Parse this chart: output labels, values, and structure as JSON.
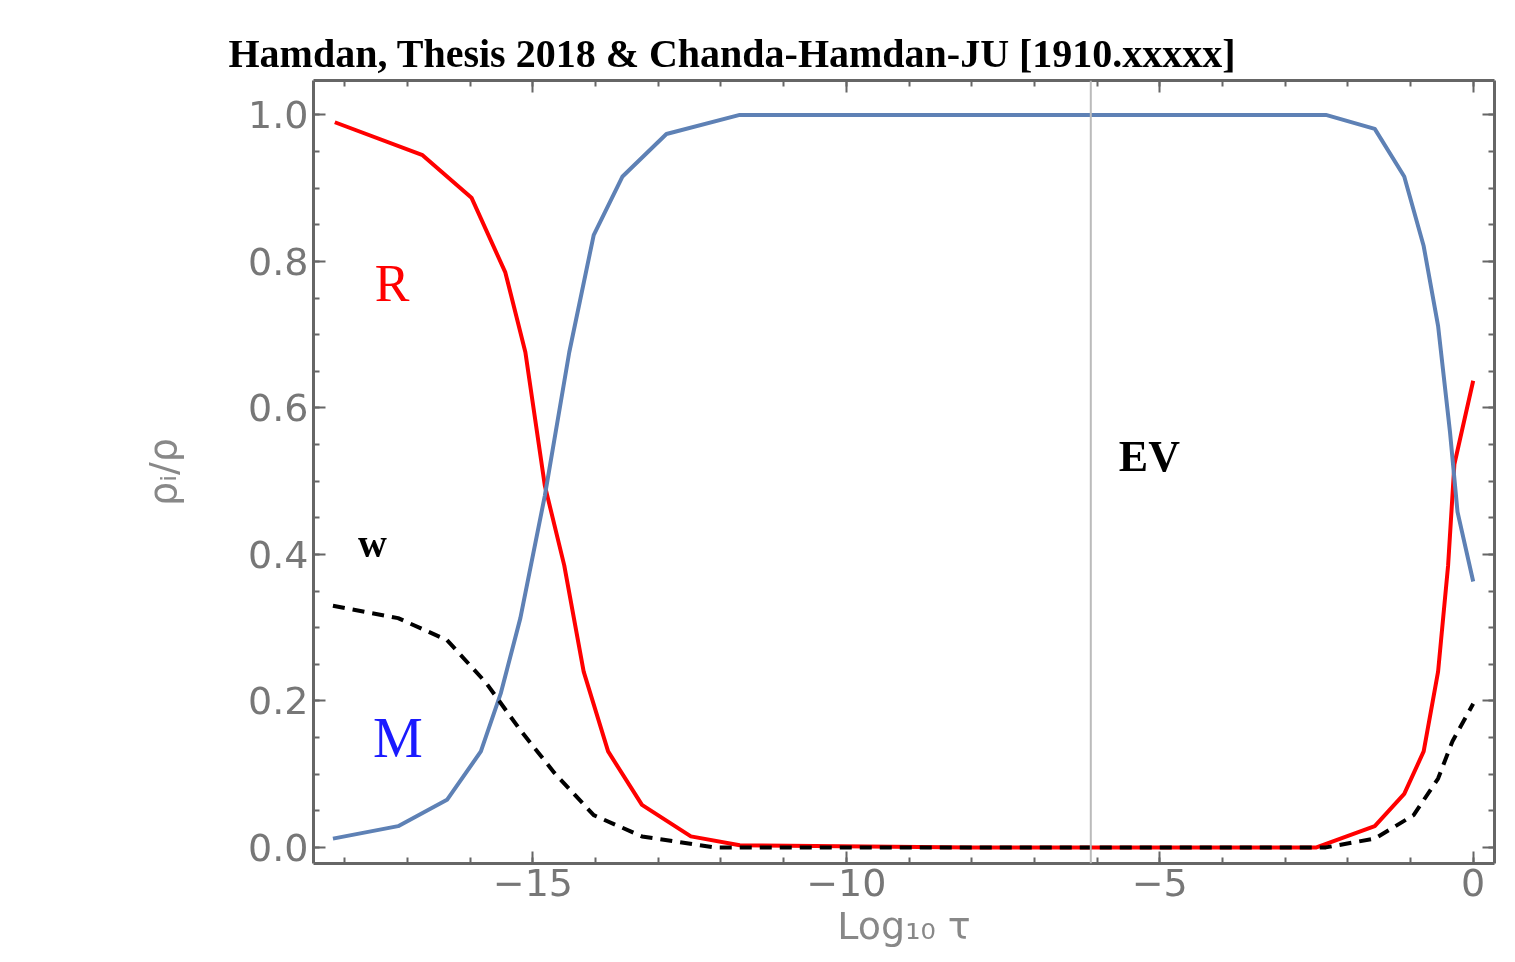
{
  "chart_data": {
    "type": "line",
    "title": "Hamdan, Thesis 2018 & Chanda-Hamdan-JU [1910.xxxxx]",
    "xlabel": "Log₁₀ τ",
    "ylabel": "ρᵢ/ρ",
    "xlim": [
      -18.5,
      0.34
    ],
    "ylim": [
      -0.022,
      1.047
    ],
    "xticks": [
      {
        "value": -15,
        "label": "−15"
      },
      {
        "value": -10,
        "label": "−10"
      },
      {
        "value": -5,
        "label": "−5"
      },
      {
        "value": 0,
        "label": "0"
      }
    ],
    "yticks": [
      {
        "value": 0,
        "label": "0.0"
      },
      {
        "value": 0.2,
        "label": "0.2"
      },
      {
        "value": 0.4,
        "label": "0.4"
      },
      {
        "value": 0.6,
        "label": "0.6"
      },
      {
        "value": 0.8,
        "label": "0.8"
      },
      {
        "value": 1,
        "label": "1.0"
      }
    ],
    "grid": false,
    "marker": "none",
    "ref_lines": [
      {
        "axis": "x",
        "value": -6.1,
        "label": "EV",
        "color": "#bbbbbb"
      }
    ],
    "series": [
      {
        "name": "R",
        "color": "#ff0000",
        "line_style": "solid",
        "x": [
          -18.16,
          -16.76,
          -15.98,
          -15.44,
          -15.12,
          -14.81,
          -14.5,
          -14.19,
          -13.8,
          -13.26,
          -12.48,
          -11.7,
          -8,
          -4,
          -2.5,
          -1.57,
          -1.1,
          -0.79,
          -0.56,
          -0.4,
          -0.3,
          0
        ],
        "values": [
          0.99,
          0.945,
          0.887,
          0.785,
          0.676,
          0.494,
          0.385,
          0.24,
          0.131,
          0.058,
          0.015,
          0.003,
          0,
          0,
          0,
          0.029,
          0.073,
          0.131,
          0.24,
          0.385,
          0.523,
          0.637
        ]
      },
      {
        "name": "M",
        "color": "#5e81b5",
        "line_style": "solid",
        "x": [
          -18.19,
          -17.15,
          -16.37,
          -15.83,
          -15.51,
          -15.2,
          -14.81,
          -14.42,
          -14.03,
          -13.57,
          -12.87,
          -11.7,
          -8,
          -4,
          -2.35,
          -1.57,
          -1.1,
          -0.79,
          -0.56,
          -0.37,
          -0.25,
          0
        ],
        "values": [
          0.012,
          0.029,
          0.065,
          0.131,
          0.211,
          0.313,
          0.48,
          0.676,
          0.836,
          0.916,
          0.974,
          1.0,
          1.0,
          1.0,
          1.0,
          0.981,
          0.916,
          0.821,
          0.712,
          0.567,
          0.458,
          0.363
        ]
      },
      {
        "name": "w",
        "color": "#000000",
        "line_style": "dashed",
        "x": [
          -18.19,
          -17.15,
          -16.37,
          -15.75,
          -15.2,
          -14.66,
          -14.03,
          -13.26,
          -12.1,
          -8,
          -4,
          -2.35,
          -1.57,
          -0.95,
          -0.56,
          -0.33,
          0
        ],
        "values": [
          0.33,
          0.313,
          0.283,
          0.225,
          0.16,
          0.102,
          0.044,
          0.015,
          0,
          0,
          0,
          0,
          0.012,
          0.044,
          0.094,
          0.145,
          0.196
        ]
      }
    ]
  }
}
